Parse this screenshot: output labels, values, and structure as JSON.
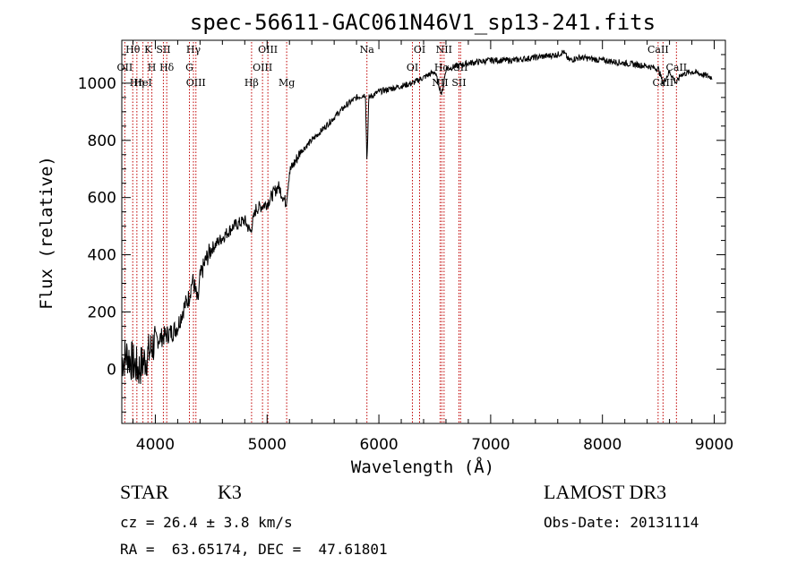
{
  "chart_data": {
    "type": "line",
    "title": "spec-56611-GAC061N46V1_sp13-241.fits",
    "xlabel": "Wavelength (Å)",
    "ylabel": "Flux (relative)",
    "xlim": [
      3700,
      9100
    ],
    "ylim": [
      -190,
      1150
    ],
    "xticks": [
      "4000",
      "5000",
      "6000",
      "7000",
      "8000",
      "9000"
    ],
    "yticks": [
      "0",
      "200",
      "400",
      "600",
      "800",
      "1000"
    ],
    "series": [
      {
        "name": "flux",
        "x": [
          3700,
          3750,
          3800,
          3850,
          3900,
          3950,
          4000,
          4050,
          4100,
          4150,
          4200,
          4250,
          4300,
          4330,
          4350,
          4380,
          4400,
          4450,
          4500,
          4600,
          4700,
          4800,
          4850,
          4900,
          5000,
          5100,
          5170,
          5200,
          5300,
          5400,
          5500,
          5600,
          5700,
          5800,
          5880,
          5893,
          5910,
          6000,
          6100,
          6200,
          6300,
          6400,
          6500,
          6563,
          6600,
          6700,
          6800,
          7000,
          7200,
          7400,
          7600,
          7650,
          7700,
          7800,
          8000,
          8200,
          8400,
          8500,
          8542,
          8600,
          8662,
          8700,
          8800,
          8900,
          8980
        ],
        "values": [
          30,
          50,
          20,
          0,
          30,
          60,
          100,
          110,
          120,
          130,
          150,
          210,
          250,
          310,
          290,
          230,
          320,
          380,
          420,
          460,
          500,
          520,
          480,
          560,
          580,
          640,
          580,
          690,
          760,
          800,
          840,
          880,
          920,
          950,
          960,
          720,
          950,
          970,
          980,
          990,
          1000,
          1020,
          1040,
          960,
          1050,
          1060,
          1070,
          1080,
          1080,
          1090,
          1100,
          1110,
          1080,
          1090,
          1080,
          1070,
          1060,
          1050,
          1000,
          1040,
          1000,
          1030,
          1040,
          1030,
          1020
        ]
      }
    ],
    "lines": [
      {
        "name": "Hθ",
        "x": 3798
      },
      {
        "name": "OII",
        "x": 3727
      },
      {
        "name": "Hη",
        "x": 3835
      },
      {
        "name": "K",
        "x": 3934
      },
      {
        "name": "H",
        "x": 3969
      },
      {
        "name": "HeI",
        "x": 3889
      },
      {
        "name": "SII",
        "x": 4072
      },
      {
        "name": "Hδ",
        "x": 4102
      },
      {
        "name": "OIII",
        "x": 4363
      },
      {
        "name": "Hγ",
        "x": 4341
      },
      {
        "name": "G",
        "x": 4305
      },
      {
        "name": "Hβ",
        "x": 4861
      },
      {
        "name": "OIII",
        "x": 5007
      },
      {
        "name": "OIII",
        "x": 4959
      },
      {
        "name": "Mg",
        "x": 5175
      },
      {
        "name": "Na",
        "x": 5893
      },
      {
        "name": "OI",
        "x": 6300
      },
      {
        "name": "NII",
        "x": 6548
      },
      {
        "name": "OI",
        "x": 6364
      },
      {
        "name": "Hα",
        "x": 6563
      },
      {
        "name": "SII",
        "x": 6716
      },
      {
        "name": "NII",
        "x": 6583
      },
      {
        "name": "SII",
        "x": 6731
      },
      {
        "name": "CaII",
        "x": 8542
      },
      {
        "name": "CaII",
        "x": 8498
      },
      {
        "name": "CaII",
        "x": 8662
      }
    ]
  },
  "info": {
    "class_label": "STAR",
    "subclass": "K3",
    "survey": "LAMOST DR3",
    "cz": "cz = 26.4 ± 3.8 km/s",
    "obs_date": "Obs-Date: 20131114",
    "radec": "RA =  63.65174, DEC =  47.61801"
  }
}
